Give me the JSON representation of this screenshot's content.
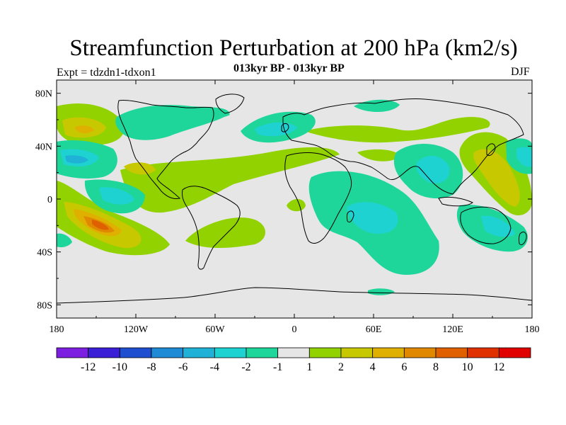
{
  "chart_data": {
    "type": "contour-map",
    "title": "Streamfunction Perturbation at 200 hPa (km2/s)",
    "subtitle": "013kyr BP - 013kyr BP",
    "left_label": "Expt = tdzdn1-tdxon1",
    "right_label": "DJF",
    "xaxis": {
      "range": [
        -180,
        180
      ],
      "ticks": [
        -180,
        -120,
        -60,
        0,
        60,
        120,
        180
      ],
      "tick_labels": [
        "180",
        "120W",
        "60W",
        "0",
        "60E",
        "120E",
        "180"
      ]
    },
    "yaxis": {
      "range": [
        -90,
        90
      ],
      "ticks": [
        80,
        40,
        0,
        -40,
        -80
      ],
      "tick_labels": [
        "80N",
        "40N",
        "0",
        "40S",
        "80S"
      ]
    },
    "colorbar": {
      "colors": [
        "#7c1fe0",
        "#3a1fd6",
        "#1f4fd0",
        "#1f8ad6",
        "#1fb2d6",
        "#1fd2d2",
        "#1fd69a",
        "#e6e6e6",
        "#92d200",
        "#c8c800",
        "#e0b000",
        "#e08800",
        "#e06000",
        "#e03000",
        "#e00000"
      ],
      "labels": [
        "-12",
        "-10",
        "-8",
        "-6",
        "-4",
        "-2",
        "-1",
        "1",
        "2",
        "4",
        "6",
        "8",
        "10",
        "12"
      ]
    },
    "features": [
      {
        "lon": -150,
        "lat": -18,
        "value": 10
      },
      {
        "lon": -165,
        "lat": 50,
        "value": 6
      },
      {
        "lon": 145,
        "lat": 25,
        "value": 4
      },
      {
        "lon": -165,
        "lat": 27,
        "value": -4
      },
      {
        "lon": -140,
        "lat": 0,
        "value": -4
      },
      {
        "lon": -100,
        "lat": 65,
        "value": -2
      },
      {
        "lon": -10,
        "lat": 50,
        "value": -4
      },
      {
        "lon": 115,
        "lat": 20,
        "value": -4
      },
      {
        "lon": 65,
        "lat": -15,
        "value": -4
      },
      {
        "lon": 140,
        "lat": -20,
        "value": -4
      },
      {
        "lon": 175,
        "lat": 30,
        "value": -4
      },
      {
        "lon": 80,
        "lat": 75,
        "value": -2
      },
      {
        "lon": -30,
        "lat": -20,
        "value": 2
      },
      {
        "lon": -60,
        "lat": 30,
        "value": 2
      },
      {
        "lon": 5,
        "lat": -5,
        "value": 2
      }
    ]
  }
}
